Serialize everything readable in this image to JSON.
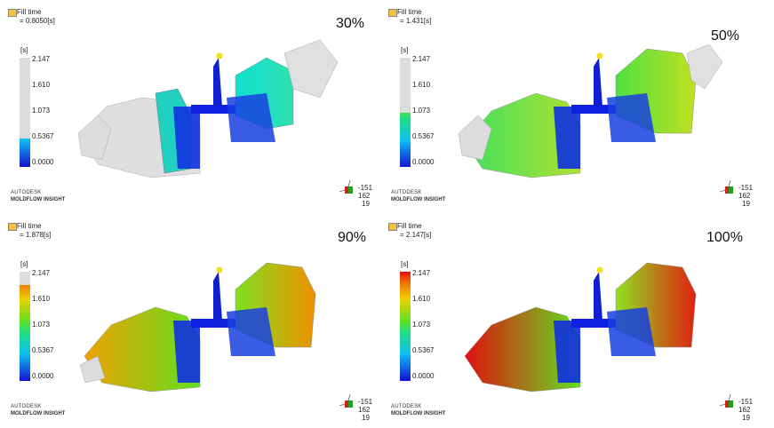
{
  "panels": [
    {
      "title": "Fill time",
      "time": "= 0.8050[s]",
      "percent": "30%",
      "unit": "[s]",
      "ticks": [
        "2.147",
        "1.610",
        "1.073",
        "0.5367",
        "0.0000"
      ],
      "brand": "AUTODESK",
      "product": "MOLDFLOW INSIGHT",
      "triad": [
        "-151",
        "162",
        "19"
      ]
    },
    {
      "title": "Fill time",
      "time": "= 1.431[s]",
      "percent": "50%",
      "unit": "[s]",
      "ticks": [
        "2.147",
        "1.610",
        "1.073",
        "0.5367",
        "0.0000"
      ],
      "brand": "AUTODESK",
      "product": "MOLDFLOW INSIGHT",
      "triad": [
        "-151",
        "162",
        "19"
      ]
    },
    {
      "title": "Fill time",
      "time": "= 1.878[s]",
      "percent": "90%",
      "unit": "[s]",
      "ticks": [
        "2.147",
        "1.610",
        "1.073",
        "0.5367",
        "0.0000"
      ],
      "brand": "AUTODESK",
      "product": "MOLDFLOW INSIGHT",
      "triad": [
        "-151",
        "162",
        "19"
      ]
    },
    {
      "title": "Fill time",
      "time": "= 2.147[s]",
      "percent": "100%",
      "unit": "[s]",
      "ticks": [
        "2.147",
        "1.610",
        "1.073",
        "0.5367",
        "0.0000"
      ],
      "brand": "AUTODESK",
      "product": "MOLDFLOW INSIGHT",
      "triad": [
        "-151",
        "162",
        "19"
      ]
    }
  ]
}
